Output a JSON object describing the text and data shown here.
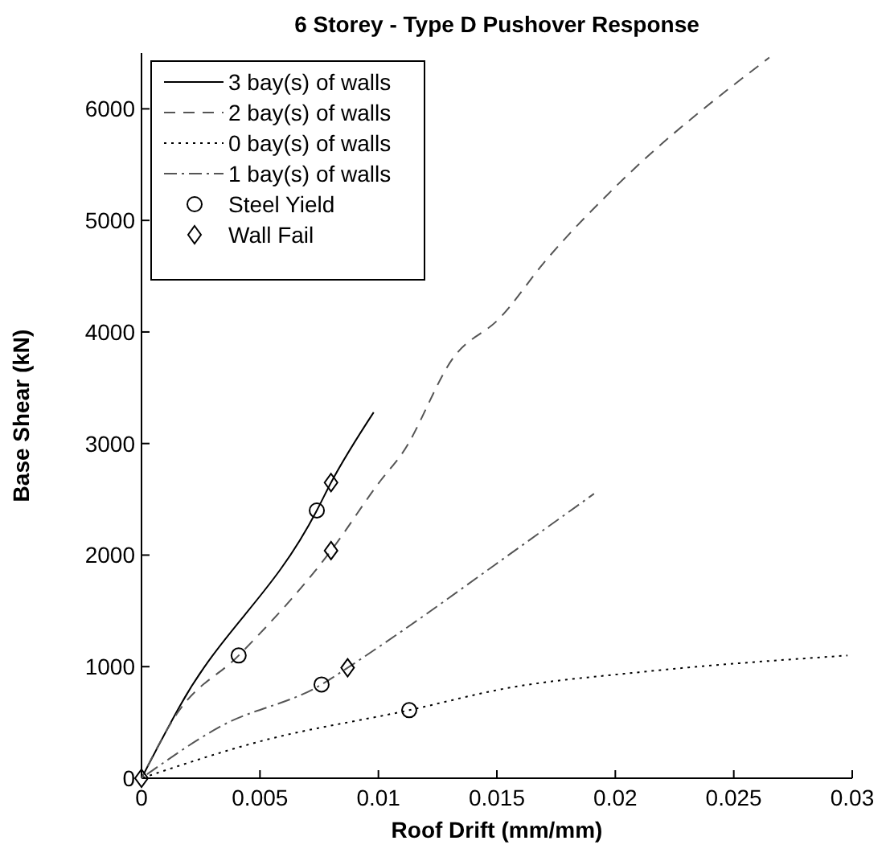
{
  "chart_data": {
    "type": "line",
    "title": "6 Storey - Type D Pushover Response",
    "xlabel": "Roof Drift (mm/mm)",
    "ylabel": "Base Shear (kN)",
    "xlim": [
      0,
      0.03
    ],
    "ylim": [
      0,
      6500
    ],
    "xticks": [
      0,
      0.005,
      0.01,
      0.015,
      0.02,
      0.025,
      0.03
    ],
    "yticks": [
      0,
      1000,
      2000,
      3000,
      4000,
      5000,
      6000
    ],
    "grid": false,
    "legend": "top left",
    "series": [
      {
        "name": "3 bay(s) of walls",
        "color": "#000000",
        "line_style": "solid",
        "marker": "none",
        "x": [
          0,
          0.0016,
          0.0074,
          0.008,
          0.0098
        ],
        "values": [
          0,
          640,
          2400,
          2650,
          3280
        ]
      },
      {
        "name": "2 bay(s) of walls",
        "color": "#555555",
        "line_style": "dashed",
        "marker": "none",
        "x": [
          0,
          0.0015,
          0.0041,
          0.008,
          0.0101,
          0.011,
          0.0132,
          0.0151,
          0.0171,
          0.02,
          0.0265
        ],
        "values": [
          0,
          580,
          1100,
          2040,
          2670,
          2910,
          3780,
          4120,
          4650,
          5300,
          6460
        ]
      },
      {
        "name": "0 bay(s) of walls",
        "color": "#000000",
        "line_style": "dotted",
        "marker": "none",
        "x": [
          0,
          0.005,
          0.0113,
          0.0155,
          0.021,
          0.0298
        ],
        "values": [
          0,
          330,
          610,
          810,
          950,
          1100
        ]
      },
      {
        "name": "1 bay(s) of walls",
        "color": "#555555",
        "line_style": "dashdot",
        "marker": "none",
        "x": [
          0,
          0.0033,
          0.0076,
          0.0087,
          0.011,
          0.0149,
          0.0191
        ],
        "values": [
          0,
          460,
          840,
          990,
          1320,
          1910,
          2550
        ]
      },
      {
        "name": "Steel Yield",
        "type": "scatter",
        "color": "#000000",
        "marker": "circle",
        "x": [
          0.0074,
          0.0041,
          0.0113,
          0.0076
        ],
        "values": [
          2400,
          1100,
          610,
          840
        ]
      },
      {
        "name": "Wall Fail",
        "type": "scatter",
        "color": "#000000",
        "marker": "diamond",
        "x": [
          0,
          0.008,
          0.008,
          0.0087
        ],
        "values": [
          0,
          2650,
          2040,
          990
        ]
      }
    ]
  }
}
